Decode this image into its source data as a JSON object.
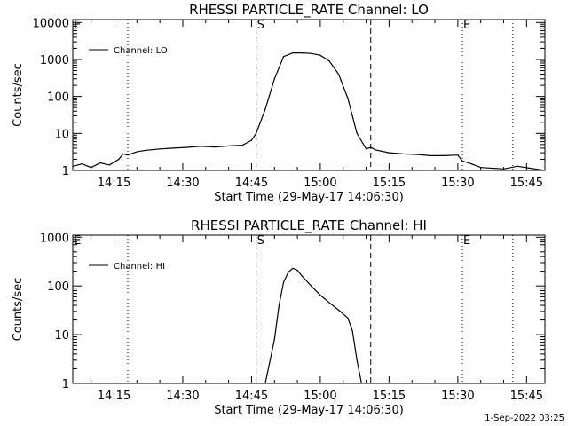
{
  "timestamp": "1-Sep-2022 03:25",
  "chart_data": [
    {
      "type": "line",
      "title": "RHESSI PARTICLE_RATE Channel: LO",
      "xlabel": "Start Time (29-May-17 14:06:30)",
      "ylabel": "Counts/sec",
      "yscale": "log",
      "ylim": [
        1,
        12000
      ],
      "xlim": [
        "14:06",
        "15:49"
      ],
      "xticks": [
        "14:15",
        "14:30",
        "14:45",
        "15:00",
        "15:15",
        "15:30",
        "15:45"
      ],
      "yticks": [
        "1",
        "10",
        "100",
        "1000",
        "10000"
      ],
      "legend": {
        "label": "Channel: LO",
        "placement": "top-left"
      },
      "markers": [
        {
          "label": "E",
          "time": "14:06",
          "style": "dotted"
        },
        {
          "label": "",
          "time": "14:18",
          "style": "dotted"
        },
        {
          "label": "S",
          "time": "14:46",
          "style": "dashed"
        },
        {
          "label": "",
          "time": "15:11",
          "style": "dashed"
        },
        {
          "label": "E",
          "time": "15:31",
          "style": "dotted"
        },
        {
          "label": "",
          "time": "15:42",
          "style": "dotted"
        }
      ],
      "series": [
        {
          "name": "Channel: LO",
          "x": [
            "14:06",
            "14:08",
            "14:10",
            "14:12",
            "14:14",
            "14:16",
            "14:17",
            "14:18",
            "14:20",
            "14:22",
            "14:25",
            "14:28",
            "14:31",
            "14:34",
            "14:37",
            "14:40",
            "14:43",
            "14:45",
            "14:46",
            "14:48",
            "14:50",
            "14:52",
            "14:54",
            "14:56",
            "14:58",
            "15:00",
            "15:02",
            "15:04",
            "15:06",
            "15:08",
            "15:10",
            "15:11",
            "15:12",
            "15:15",
            "15:18",
            "15:21",
            "15:24",
            "15:27",
            "15:30",
            "15:31",
            "15:33",
            "15:35",
            "15:40",
            "15:43",
            "15:49"
          ],
          "values": [
            1.3,
            1.5,
            1.2,
            1.6,
            1.4,
            2,
            2.8,
            2.6,
            3.2,
            3.5,
            3.8,
            4,
            4.2,
            4.5,
            4.3,
            4.6,
            4.8,
            6.5,
            10,
            45,
            300,
            1200,
            1500,
            1500,
            1450,
            1300,
            900,
            400,
            90,
            10,
            3.8,
            4.2,
            3.6,
            3,
            2.8,
            2.7,
            2.5,
            2.5,
            2.6,
            1.8,
            1.5,
            1.2,
            1.1,
            1.3,
            1
          ]
        }
      ]
    },
    {
      "type": "line",
      "title": "RHESSI PARTICLE_RATE Channel: HI",
      "xlabel": "Start Time (29-May-17 14:06:30)",
      "ylabel": "Counts/sec",
      "yscale": "log",
      "ylim": [
        1,
        1100
      ],
      "xlim": [
        "14:06",
        "15:49"
      ],
      "xticks": [
        "14:15",
        "14:30",
        "14:45",
        "15:00",
        "15:15",
        "15:30",
        "15:45"
      ],
      "yticks": [
        "1",
        "10",
        "100",
        "1000"
      ],
      "legend": {
        "label": "Channel: HI",
        "placement": "top-left"
      },
      "markers": [
        {
          "label": "E",
          "time": "14:06",
          "style": "dotted"
        },
        {
          "label": "",
          "time": "14:18",
          "style": "dotted"
        },
        {
          "label": "S",
          "time": "14:46",
          "style": "dashed"
        },
        {
          "label": "",
          "time": "15:11",
          "style": "dashed"
        },
        {
          "label": "E",
          "time": "15:31",
          "style": "dotted"
        },
        {
          "label": "",
          "time": "15:42",
          "style": "dotted"
        }
      ],
      "series": [
        {
          "name": "Channel: HI",
          "x": [
            "14:48",
            "14:50",
            "14:51",
            "14:52",
            "14:53",
            "14:54",
            "14:55",
            "14:56",
            "14:58",
            "15:00",
            "15:02",
            "15:04",
            "15:06",
            "15:07",
            "15:08",
            "15:09"
          ],
          "values": [
            1,
            8,
            40,
            120,
            190,
            230,
            210,
            160,
            100,
            65,
            45,
            32,
            22,
            12,
            3,
            1
          ]
        }
      ]
    }
  ]
}
